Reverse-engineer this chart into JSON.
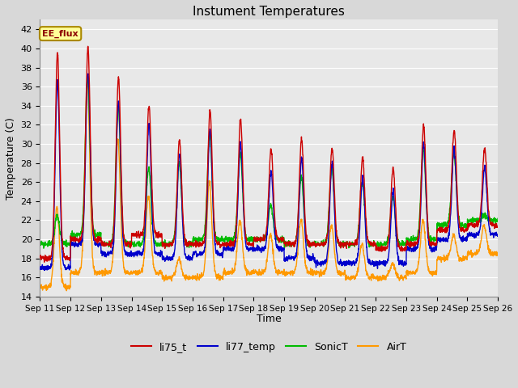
{
  "title": "Instument Temperatures",
  "ylabel": "Temperature (C)",
  "xlabel": "Time",
  "annotation": "EE_flux",
  "ylim": [
    14,
    43
  ],
  "yticks": [
    14,
    16,
    18,
    20,
    22,
    24,
    26,
    28,
    30,
    32,
    34,
    36,
    38,
    40,
    42
  ],
  "xtick_labels": [
    "Sep 11",
    "Sep 12",
    "Sep 13",
    "Sep 14",
    "Sep 15",
    "Sep 16",
    "Sep 17",
    "Sep 18",
    "Sep 19",
    "Sep 20",
    "Sep 21",
    "Sep 22",
    "Sep 23",
    "Sep 24",
    "Sep 25",
    "Sep 26"
  ],
  "colors": {
    "li75_t": "#cc0000",
    "li77_temp": "#0000cc",
    "SonicT": "#00bb00",
    "AirT": "#ff9900"
  },
  "background_color": "#d8d8d8",
  "plot_bg_color": "#e8e8e8",
  "grid_color": "#ffffff",
  "annotation_bg": "#ffff99",
  "annotation_border": "#aa8800",
  "li75_peaks": [
    39.5,
    40.2,
    37.0,
    34.0,
    30.5,
    33.5,
    32.5,
    29.5,
    30.5,
    29.5,
    28.5,
    27.5,
    32.0,
    31.5,
    29.5
  ],
  "li77_peaks": [
    36.5,
    37.5,
    34.5,
    32.0,
    29.0,
    31.5,
    30.0,
    27.0,
    28.5,
    28.0,
    26.5,
    25.0,
    30.0,
    29.5,
    27.5
  ],
  "sonic_peaks": [
    22.5,
    37.0,
    34.0,
    27.5,
    28.0,
    31.0,
    29.0,
    23.5,
    26.5,
    27.5,
    26.0,
    24.5,
    29.5,
    29.0,
    22.5
  ],
  "air_peaks": [
    23.5,
    36.5,
    30.5,
    24.5,
    18.0,
    26.0,
    22.0,
    20.5,
    22.0,
    21.5,
    19.5,
    17.5,
    22.0,
    20.5,
    21.5
  ],
  "li75_nights": [
    18.0,
    20.0,
    19.5,
    20.5,
    19.5,
    19.5,
    19.5,
    20.0,
    19.5,
    19.5,
    19.5,
    19.0,
    19.5,
    21.0,
    21.5
  ],
  "li77_nights": [
    17.0,
    19.5,
    18.5,
    18.5,
    18.0,
    18.5,
    19.0,
    19.0,
    18.0,
    17.5,
    17.5,
    17.5,
    19.0,
    20.0,
    20.5
  ],
  "sonic_nights": [
    19.5,
    20.5,
    19.5,
    19.5,
    19.5,
    20.0,
    20.0,
    20.0,
    19.5,
    19.5,
    19.5,
    19.5,
    20.0,
    21.5,
    22.0
  ],
  "air_nights": [
    15.0,
    16.5,
    16.5,
    16.5,
    16.0,
    16.0,
    16.5,
    16.5,
    16.5,
    16.5,
    16.0,
    16.0,
    16.5,
    18.0,
    18.5
  ]
}
